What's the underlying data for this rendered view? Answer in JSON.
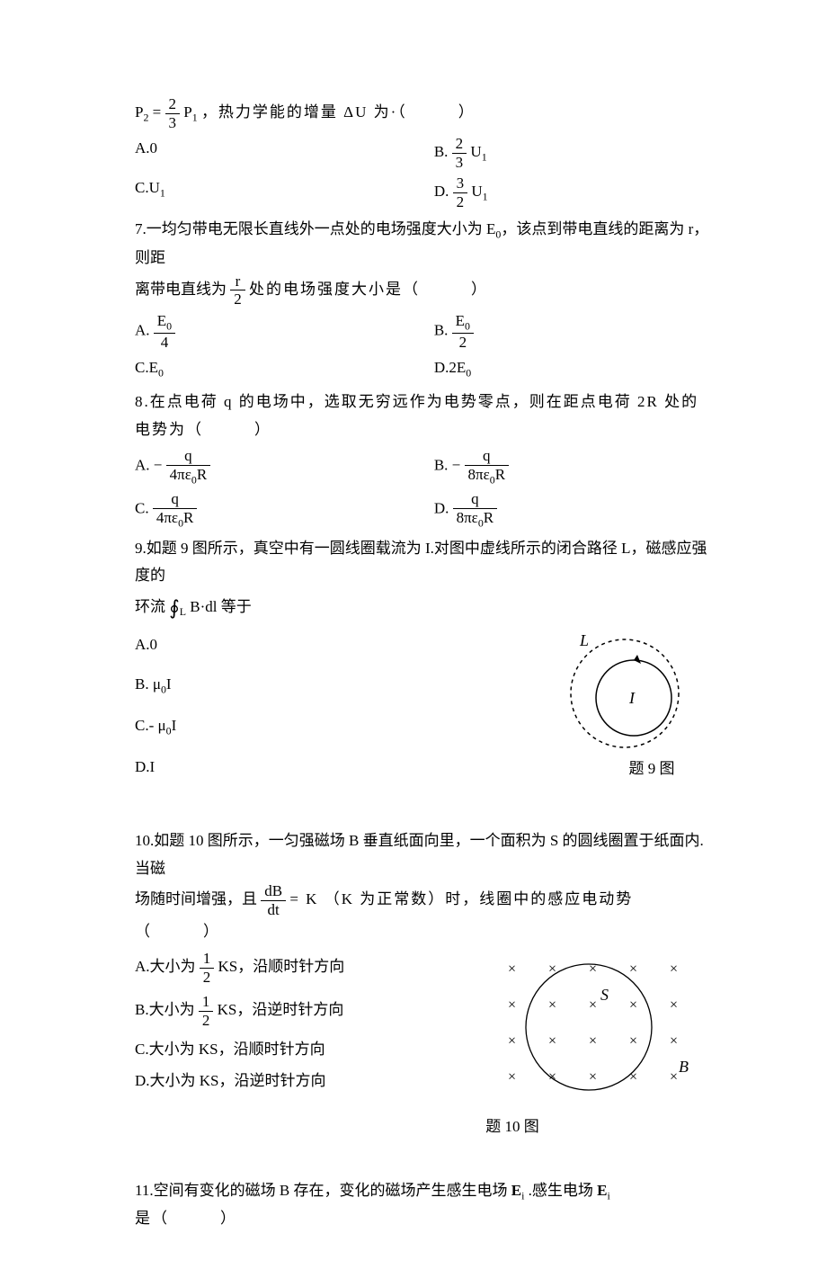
{
  "q6": {
    "stem_prefix": "P",
    "stem_sub2": "2",
    "stem_eq": " = ",
    "frac_23_num": "2",
    "frac_23_den": "3",
    "stem_P1": "P",
    "stem_sub1": "1",
    "stem_rest": "，热力学能的增量 ΔU 为·（　　　）",
    "A": "A.0",
    "B_prefix": "B. ",
    "B_frac_num": "2",
    "B_frac_den": "3",
    "B_tail": "U",
    "B_sub": "1",
    "C": "C.U",
    "C_sub": "1",
    "D_prefix": "D. ",
    "D_frac_num": "3",
    "D_frac_den": "2",
    "D_tail": "U",
    "D_sub": "1"
  },
  "q7": {
    "stem1": "7.一均匀带电无限长直线外一点处的电场强度大小为 E",
    "stem1_sub": "0",
    "stem1_rest": "，该点到带电直线的距离为 r，则距",
    "stem2_pre": "离带电直线为 ",
    "stem2_frac_num": "r",
    "stem2_frac_den": "2",
    "stem2_post": " 处的电场强度大小是（　　　）",
    "A_prefix": "A. ",
    "A_frac_num_pre": "E",
    "A_frac_num_sub": "0",
    "A_frac_den": "4",
    "B_prefix": "B.  ",
    "B_frac_num_pre": "E",
    "B_frac_num_sub": "0",
    "B_frac_den": "2",
    "C": "C.E",
    "C_sub": "0",
    "D": "D.2E",
    "D_sub": "0"
  },
  "q8": {
    "stem": "8.在点电荷 q 的电场中，选取无穷远作为电势零点，则在距点电荷 2R 处的电势为（　　　）",
    "A_prefix": "A. − ",
    "A_num": "q",
    "A_den_pre": "4πε",
    "A_den_sub": "0",
    "A_den_post": "R",
    "B_prefix": "B. − ",
    "B_num": "q",
    "B_den_pre": "8πε",
    "B_den_sub": "0",
    "B_den_post": "R",
    "C_prefix": "C. ",
    "C_num": "q",
    "C_den_pre": "4πε",
    "C_den_sub": "0",
    "C_den_post": "R",
    "D_prefix": "D.  ",
    "D_num": "q",
    "D_den_pre": "8πε",
    "D_den_sub": "0",
    "D_den_post": "R"
  },
  "q9": {
    "stem1": "9.如题 9 图所示，真空中有一圆线圈载流为 I.对图中虚线所示的闭合路径 L，磁感应强度的",
    "stem2_pre": "环流 ",
    "stem2_int": "∮",
    "stem2_int_sub": "L",
    "stem2_body": "B·dl 等于",
    "A": "A.0",
    "B_pre": "B. μ",
    "B_sub": "0",
    "B_post": "I",
    "C_pre": "C.- μ",
    "C_sub": "0",
    "C_post": "I",
    "D": "D.I",
    "caption": "题 9 图",
    "fig": {
      "L_label": "L",
      "I_label": "I",
      "solid_color": "#000000",
      "dashed_color": "#000000",
      "bg": "#ffffff",
      "font_italic": true
    }
  },
  "q10": {
    "stem1": "10.如题 10 图所示，一匀强磁场 B 垂直纸面向里，一个面积为 S 的圆线圈置于纸面内.当磁",
    "stem2_pre": "场随时间增强，且 ",
    "stem2_frac_num": "dB",
    "stem2_frac_den": "dt",
    "stem2_post": " = K （K 为正常数）时，线圈中的感应电动势（　　　）",
    "A_pre": "A.大小为 ",
    "A_frac_num": "1",
    "A_frac_den": "2",
    "A_post": "KS，沿顺时针方向",
    "B_pre": "B.大小为 ",
    "B_frac_num": "1",
    "B_frac_den": "2",
    "B_post": "KS，沿逆时针方向",
    "C": "C.大小为 KS，沿顺时针方向",
    "D": "D.大小为 KS，沿逆时针方向",
    "caption": "题 10 图",
    "fig": {
      "S_label": "S",
      "B_label": "B",
      "cross": "×",
      "cross_color": "#000000",
      "circle_color": "#000000",
      "font_italic": true,
      "rows": 4,
      "cols": 5,
      "spacing": 45
    }
  },
  "q11": {
    "stem_pre": "11.空间有变化的磁场 B 存在，变化的磁场产生感生电场 ",
    "E": "E",
    "E_sub": "i",
    "stem_mid": ".感生电场 ",
    "E2": "E",
    "E2_sub": "i",
    "stem_post": " 是（　　　）"
  },
  "style": {
    "text_color": "#000000",
    "bg_color": "#ffffff",
    "font_size_pt": 12,
    "line_height": 1.8
  }
}
